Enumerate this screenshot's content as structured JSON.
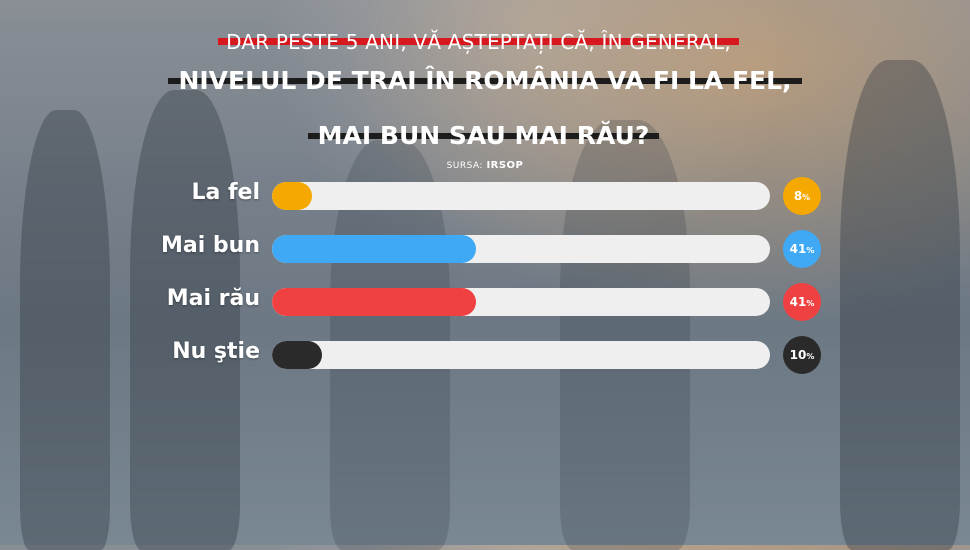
{
  "header": {
    "line1": "DAR PESTE 5 ANI, VĂ AȘTEPTAȚI CĂ, ÎN GENERAL,",
    "line2": "NIVELUL DE TRAI ÎN ROMÂNIA VA FI LA FEL,",
    "line3": "MAI BUN SAU MAI RĂU?"
  },
  "source": {
    "prefix": "SURSA:",
    "name": "IRSOP"
  },
  "chart_data": {
    "type": "bar",
    "orientation": "horizontal",
    "categories": [
      "La fel",
      "Mai bun",
      "Mai rău",
      "Nu ştie"
    ],
    "values": [
      8,
      41,
      41,
      10
    ],
    "value_labels": [
      "8",
      "41",
      "41",
      "10"
    ],
    "unit": "%",
    "xlim": [
      0,
      100
    ],
    "colors": [
      "#f5a800",
      "#3fa9f5",
      "#ef4141",
      "#2a2a2a"
    ],
    "track_color": "#efefef",
    "grid": false,
    "legend": "none"
  }
}
